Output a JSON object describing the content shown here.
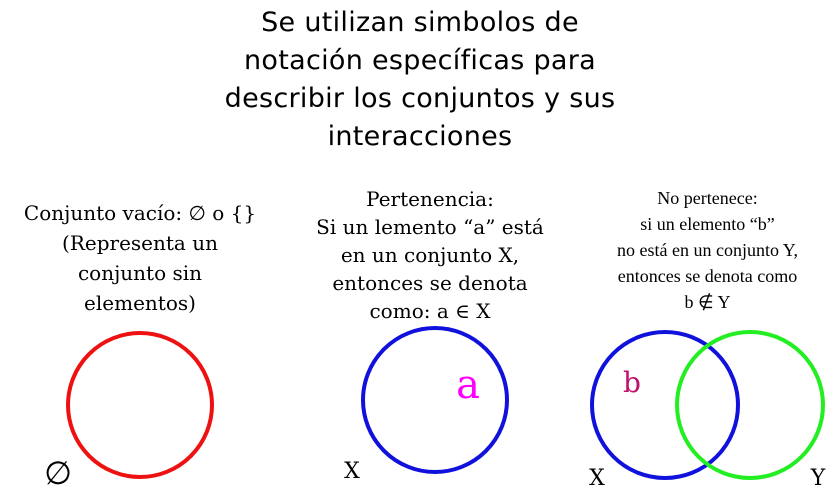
{
  "title": {
    "lines": [
      "Se utilizan simbolos de",
      "notación específicas para",
      "describir los conjuntos y sus",
      "interacciones"
    ]
  },
  "empty_set": {
    "caption_lines": [
      "Conjunto vacío: ∅ o {}",
      "(Representa un",
      "conjunto sin",
      "elementos)"
    ],
    "symbol": "∅",
    "circle_color": "#ee1111"
  },
  "membership": {
    "caption_lines": [
      "Pertenencia:",
      "Si un lemento “a” está",
      "en un conjunto X,",
      "entonces se denota",
      "como: a ∈ X"
    ],
    "element_label": "a",
    "element_color": "#ff00ff",
    "set_label": "X",
    "circle_color": "#1111dd"
  },
  "non_membership": {
    "caption_lines": [
      "No pertenece:",
      "si un elemento “b”",
      "no está en un conjunto Y,",
      "entonces se denota como",
      "b ∉ Y"
    ],
    "element_label": "b",
    "element_color": "#c0106e",
    "set_x_label": "X",
    "set_y_label": "Y",
    "circle_x_color": "#1111dd",
    "circle_y_color": "#22ee22"
  }
}
